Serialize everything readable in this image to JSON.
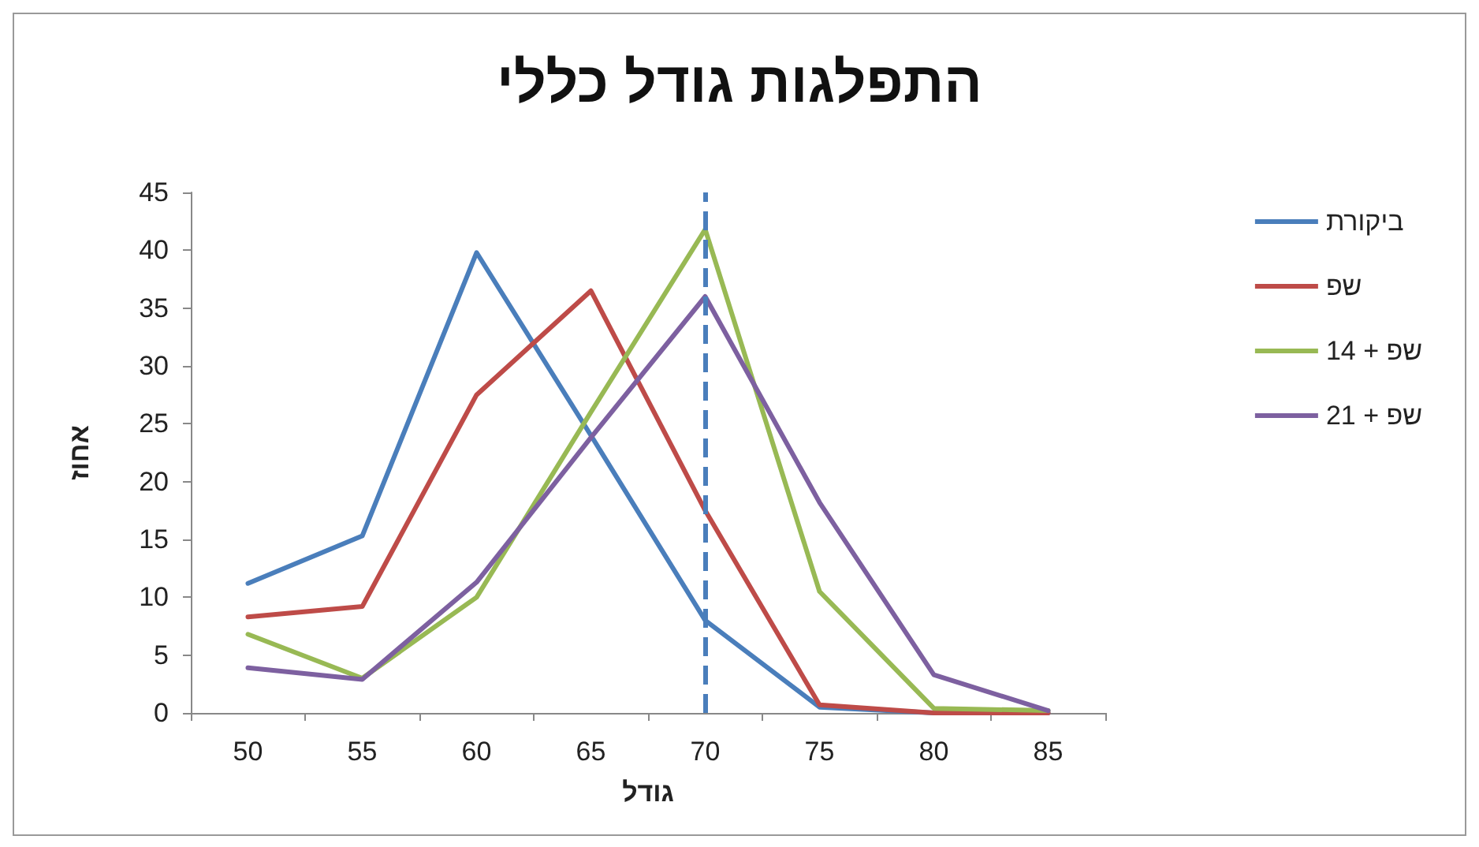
{
  "chart_data": {
    "type": "line",
    "title": "התפלגות גודל כללי",
    "xlabel": "גודל",
    "ylabel": "אחוז",
    "categories": [
      "50",
      "55",
      "60",
      "65",
      "70",
      "75",
      "80",
      "85"
    ],
    "series": [
      {
        "name": "ביקורת",
        "color": "#4a7ebb",
        "values": [
          11.2,
          15.3,
          39.8,
          24,
          8,
          0.5,
          0,
          0
        ]
      },
      {
        "name": "שפ",
        "color": "#be4b48",
        "values": [
          8.3,
          9.2,
          27.5,
          36.5,
          17.5,
          0.7,
          0,
          0
        ]
      },
      {
        "name": "שפ + 14",
        "color": "#98b954",
        "values": [
          6.8,
          3,
          10,
          26,
          41.8,
          10.5,
          0.4,
          0.2
        ]
      },
      {
        "name": "שפ + 21",
        "color": "#7d60a0",
        "values": [
          3.9,
          2.9,
          11.3,
          23.8,
          36,
          18.2,
          3.3,
          0.2
        ]
      }
    ],
    "ylim": [
      0,
      45
    ],
    "yticks": [
      0,
      5,
      10,
      15,
      20,
      25,
      30,
      35,
      40,
      45
    ],
    "ref_lines": [
      {
        "axis": "x",
        "value": "70",
        "color": "#4a7ebb",
        "line_style": "dashed"
      }
    ],
    "grid": false,
    "legend": "top right",
    "marker": "none",
    "line_style": "solid"
  }
}
